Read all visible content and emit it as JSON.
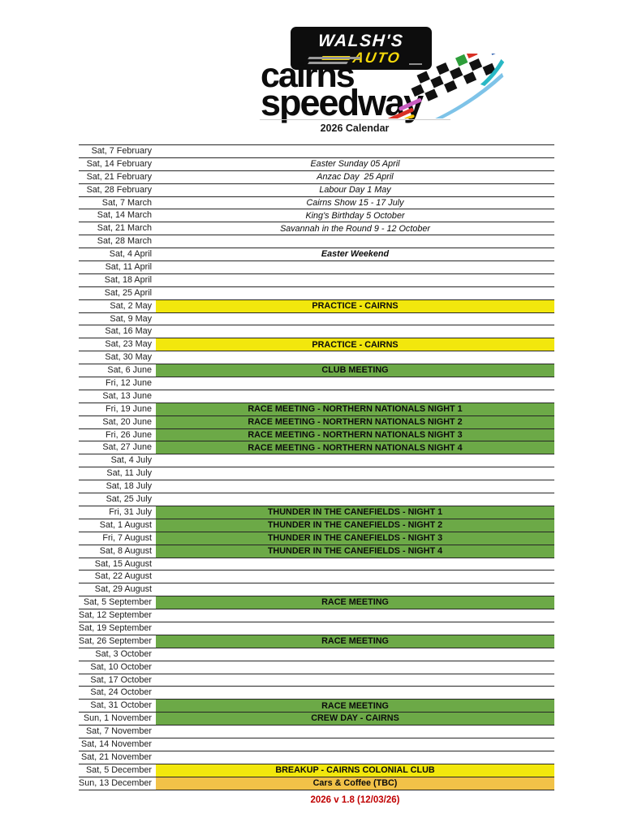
{
  "header": {
    "walsh_name": "WALSH'S",
    "walsh_auto": "AUTO",
    "brand_line1": "cairns",
    "brand_line2": "speedway",
    "title": "2026 Calendar"
  },
  "colors": {
    "yellow": "#F2E70D",
    "green": "#6CA947",
    "gold": "#F2C248",
    "versionRed": "#C00000",
    "flag_black": "#111111",
    "flag_red": "#D93025",
    "flag_green": "#2E9E3A",
    "flag_blue": "#2A5CAE",
    "flag_teal": "#29B8C5",
    "flag_yellow": "#F2C500",
    "flag_magenta": "#C85CC0",
    "flag_lightblue": "#7EC3E8"
  },
  "footer": {
    "version": "2026 v 1.8 (12/03/26)"
  },
  "rows": [
    {
      "date": "Sat, 7 February",
      "event": "",
      "type": ""
    },
    {
      "date": "Sat, 14 February",
      "event": "Easter Sunday 05 April",
      "type": "note"
    },
    {
      "date": "Sat, 21 February",
      "event": "Anzac Day  25 April",
      "type": "note"
    },
    {
      "date": "Sat, 28 February",
      "event": "Labour Day 1 May",
      "type": "note"
    },
    {
      "date": "Sat, 7 March",
      "event": "Cairns Show 15 - 17 July",
      "type": "note"
    },
    {
      "date": "Sat, 14 March",
      "event": "King's Birthday 5 October",
      "type": "note"
    },
    {
      "date": "Sat, 21 March",
      "event": "Savannah in the Round 9 - 12 October",
      "type": "note"
    },
    {
      "date": "Sat, 28 March",
      "event": "",
      "type": ""
    },
    {
      "date": "Sat, 4 April",
      "event": "Easter Weekend",
      "type": "noteBold"
    },
    {
      "date": "Sat, 11 April",
      "event": "",
      "type": ""
    },
    {
      "date": "Sat, 18 April",
      "event": "",
      "type": ""
    },
    {
      "date": "Sat, 25 April",
      "event": "",
      "type": ""
    },
    {
      "date": "Sat, 2 May",
      "event": "PRACTICE - CAIRNS",
      "type": "yellow"
    },
    {
      "date": "Sat, 9 May",
      "event": "",
      "type": ""
    },
    {
      "date": "Sat, 16 May",
      "event": "",
      "type": ""
    },
    {
      "date": "Sat, 23 May",
      "event": "PRACTICE - CAIRNS",
      "type": "yellow"
    },
    {
      "date": "Sat, 30 May",
      "event": "",
      "type": ""
    },
    {
      "date": "Sat, 6 June",
      "event": "CLUB MEETING",
      "type": "green"
    },
    {
      "date": "Fri, 12 June",
      "event": "",
      "type": ""
    },
    {
      "date": "Sat, 13 June",
      "event": "",
      "type": ""
    },
    {
      "date": "Fri, 19 June",
      "event": "RACE MEETING - NORTHERN NATIONALS NIGHT 1",
      "type": "green"
    },
    {
      "date": "Sat, 20 June",
      "event": "RACE MEETING - NORTHERN NATIONALS NIGHT 2",
      "type": "green"
    },
    {
      "date": "Fri, 26 June",
      "event": "RACE MEETING - NORTHERN NATIONALS NIGHT 3",
      "type": "green"
    },
    {
      "date": "Sat, 27 June",
      "event": "RACE MEETING - NORTHERN NATIONALS NIGHT 4",
      "type": "green"
    },
    {
      "date": "Sat, 4 July",
      "event": "",
      "type": ""
    },
    {
      "date": "Sat, 11 July",
      "event": "",
      "type": ""
    },
    {
      "date": "Sat, 18 July",
      "event": "",
      "type": ""
    },
    {
      "date": "Sat, 25 July",
      "event": "",
      "type": ""
    },
    {
      "date": "Fri, 31 July",
      "event": "THUNDER IN THE CANEFIELDS - NIGHT 1",
      "type": "green"
    },
    {
      "date": "Sat, 1 August",
      "event": "THUNDER IN THE CANEFIELDS - NIGHT 2",
      "type": "green"
    },
    {
      "date": "Fri, 7 August",
      "event": "THUNDER IN THE CANEFIELDS - NIGHT 3",
      "type": "green"
    },
    {
      "date": "Sat, 8 August",
      "event": "THUNDER IN THE CANEFIELDS - NIGHT 4",
      "type": "green"
    },
    {
      "date": "Sat, 15 August",
      "event": "",
      "type": ""
    },
    {
      "date": "Sat, 22 August",
      "event": "",
      "type": ""
    },
    {
      "date": "Sat, 29 August",
      "event": "",
      "type": ""
    },
    {
      "date": "Sat, 5 September",
      "event": "RACE MEETING",
      "type": "green"
    },
    {
      "date": "Sat, 12 September",
      "event": "",
      "type": ""
    },
    {
      "date": "Sat, 19 September",
      "event": "",
      "type": ""
    },
    {
      "date": "Sat, 26 September",
      "event": "RACE MEETING",
      "type": "green"
    },
    {
      "date": "Sat, 3 October",
      "event": "",
      "type": ""
    },
    {
      "date": "Sat, 10 October",
      "event": "",
      "type": ""
    },
    {
      "date": "Sat, 17 October",
      "event": "",
      "type": ""
    },
    {
      "date": "Sat, 24 October",
      "event": "",
      "type": ""
    },
    {
      "date": "Sat, 31 October",
      "event": "RACE MEETING",
      "type": "green"
    },
    {
      "date": "Sun, 1 November",
      "event": "CREW DAY - CAIRNS",
      "type": "green"
    },
    {
      "date": "Sat, 7 November",
      "event": "",
      "type": ""
    },
    {
      "date": "Sat, 14 November",
      "event": "",
      "type": ""
    },
    {
      "date": "Sat, 21 November",
      "event": "",
      "type": ""
    },
    {
      "date": "Sat, 5 December",
      "event": "BREAKUP - CAIRNS COLONIAL CLUB",
      "type": "yellow"
    },
    {
      "date": "Sun, 13 December",
      "event": "Cars & Coffee (TBC)",
      "type": "gold"
    }
  ]
}
